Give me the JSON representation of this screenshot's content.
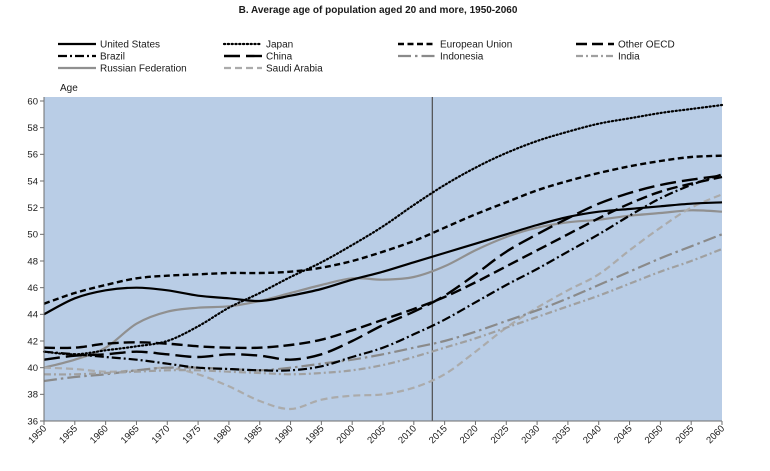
{
  "chart_data": {
    "type": "line",
    "title": "B. Average age of population aged 20 and more, 1950-2060",
    "ylabel": "Age",
    "xlim": [
      1950,
      2060
    ],
    "ylim": [
      36,
      60
    ],
    "grid": false,
    "legend": "top",
    "vline_x": 2013,
    "xticks": [
      "1950",
      "1955",
      "1960",
      "1965",
      "1970",
      "1975",
      "1980",
      "1985",
      "1990",
      "1995",
      "2000",
      "2005",
      "2010",
      "2015",
      "2020",
      "2025",
      "2030",
      "2035",
      "2040",
      "2045",
      "2050",
      "2055",
      "2060"
    ],
    "yticks": [
      "36",
      "38",
      "40",
      "42",
      "44",
      "46",
      "48",
      "50",
      "52",
      "54",
      "56",
      "58",
      "60"
    ],
    "x": [
      1950,
      1955,
      1960,
      1965,
      1970,
      1975,
      1980,
      1985,
      1990,
      1995,
      2000,
      2005,
      2010,
      2015,
      2020,
      2025,
      2030,
      2035,
      2040,
      2045,
      2050,
      2055,
      2060
    ],
    "series": [
      {
        "name": "United States",
        "color": "#000000",
        "values": [
          44.0,
          45.2,
          45.8,
          46.0,
          45.8,
          45.4,
          45.2,
          45.0,
          45.4,
          45.9,
          46.6,
          47.2,
          47.9,
          48.6,
          49.3,
          50.0,
          50.7,
          51.3,
          51.7,
          51.9,
          52.1,
          52.3,
          52.4
        ]
      },
      {
        "name": "Japan",
        "color": "#000000",
        "values": [
          41.2,
          41.0,
          41.3,
          41.6,
          42.0,
          43.1,
          44.5,
          45.6,
          46.8,
          47.9,
          49.2,
          50.6,
          52.2,
          53.7,
          55.0,
          56.1,
          57.0,
          57.7,
          58.3,
          58.7,
          59.1,
          59.4,
          59.7
        ]
      },
      {
        "name": "European Union",
        "color": "#000000",
        "values": [
          44.8,
          45.6,
          46.2,
          46.7,
          46.9,
          47.0,
          47.1,
          47.1,
          47.2,
          47.5,
          48.0,
          48.7,
          49.5,
          50.5,
          51.5,
          52.4,
          53.3,
          54.0,
          54.6,
          55.1,
          55.5,
          55.8,
          55.9
        ]
      },
      {
        "name": "Other OECD",
        "color": "#000000",
        "values": [
          41.5,
          41.5,
          41.8,
          41.9,
          41.8,
          41.6,
          41.5,
          41.5,
          41.7,
          42.1,
          42.8,
          43.6,
          44.4,
          45.3,
          46.4,
          47.6,
          48.8,
          50.0,
          51.2,
          52.3,
          53.2,
          53.8,
          54.3
        ]
      },
      {
        "name": "Brazil",
        "color": "#000000",
        "values": [
          41.2,
          41.0,
          40.8,
          40.6,
          40.3,
          40.0,
          39.9,
          39.8,
          39.8,
          40.1,
          40.8,
          41.5,
          42.5,
          43.6,
          44.9,
          46.2,
          47.4,
          48.7,
          50.0,
          51.4,
          52.7,
          53.7,
          54.5
        ]
      },
      {
        "name": "China",
        "color": "#000000",
        "values": [
          40.6,
          40.9,
          41.0,
          41.2,
          41.0,
          40.8,
          41.0,
          40.9,
          40.6,
          41.0,
          42.0,
          43.2,
          44.2,
          45.4,
          47.0,
          48.7,
          50.0,
          51.2,
          52.3,
          53.1,
          53.7,
          54.1,
          54.4
        ]
      },
      {
        "name": "Indonesia",
        "color": "#8a8a8a",
        "values": [
          39.0,
          39.3,
          39.5,
          39.8,
          40.0,
          40.0,
          39.9,
          39.8,
          40.0,
          40.3,
          40.6,
          41.0,
          41.5,
          42.0,
          42.7,
          43.5,
          44.3,
          45.2,
          46.2,
          47.2,
          48.2,
          49.1,
          50.0
        ]
      },
      {
        "name": "India",
        "color": "#a0a0a0",
        "values": [
          39.5,
          39.5,
          39.6,
          39.7,
          39.8,
          39.8,
          39.7,
          39.6,
          39.5,
          39.6,
          39.8,
          40.2,
          40.8,
          41.5,
          42.2,
          43.0,
          43.8,
          44.6,
          45.4,
          46.3,
          47.2,
          48.0,
          48.9
        ]
      },
      {
        "name": "Russian Federation",
        "color": "#909090",
        "values": [
          40.0,
          40.6,
          41.5,
          43.3,
          44.2,
          44.5,
          44.6,
          45.0,
          45.6,
          46.2,
          46.7,
          46.6,
          46.8,
          47.6,
          48.8,
          49.8,
          50.5,
          50.9,
          51.1,
          51.4,
          51.6,
          51.8,
          51.7
        ]
      },
      {
        "name": "Saudi Arabia",
        "color": "#ababab",
        "values": [
          40.0,
          39.9,
          39.7,
          39.8,
          40.0,
          39.5,
          38.6,
          37.5,
          36.9,
          37.6,
          37.9,
          38.0,
          38.5,
          39.5,
          41.2,
          43.0,
          44.5,
          45.8,
          47.0,
          48.8,
          50.5,
          52.0,
          53.0
        ]
      }
    ]
  }
}
